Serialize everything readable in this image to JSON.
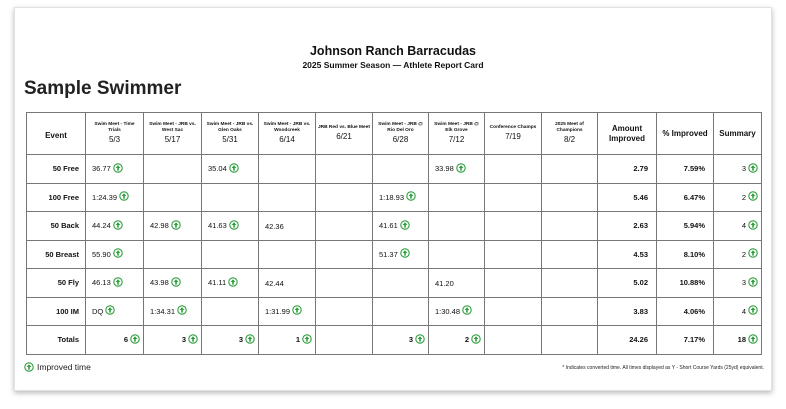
{
  "header": {
    "team_name": "Johnson Ranch Barracudas",
    "season": "2025 Summer Season — Athlete Report Card"
  },
  "athlete_name": "Sample Swimmer",
  "columns": {
    "event": "Event",
    "meets": [
      {
        "name": "Swim Meet - Time Trials",
        "date": "5/3"
      },
      {
        "name": "Swim Meet - JRB vs. West Sac",
        "date": "5/17"
      },
      {
        "name": "Swim Meet - JRB vs. Glen Oaks",
        "date": "5/31"
      },
      {
        "name": "Swim Meet - JRB vs. Woodcreek",
        "date": "6/14"
      },
      {
        "name": "JRB Red vs. Blue Meet",
        "date": "6/21"
      },
      {
        "name": "Swim Meet - JRB @ Rio Del Oro",
        "date": "6/28"
      },
      {
        "name": "Swim Meet - JRB @ Elk Grove",
        "date": "7/12"
      },
      {
        "name": "Conference Champs",
        "date": "7/19"
      },
      {
        "name": "2025 Meet of Champions",
        "date": "8/2"
      }
    ],
    "amount_improved": "Amount Improved",
    "pct_improved": "% Improved",
    "summary": "Summary"
  },
  "rows": [
    {
      "event": "50 Free",
      "times": [
        {
          "t": "36.77",
          "imp": true
        },
        {
          "t": "",
          "imp": false
        },
        {
          "t": "35.04",
          "imp": true
        },
        {
          "t": "",
          "imp": false
        },
        {
          "t": "",
          "imp": false
        },
        {
          "t": "",
          "imp": false
        },
        {
          "t": "33.98",
          "imp": true
        },
        {
          "t": "",
          "imp": false
        },
        {
          "t": "",
          "imp": false
        }
      ],
      "amount": "2.79",
      "pct": "7.59%",
      "summary": "3"
    },
    {
      "event": "100 Free",
      "times": [
        {
          "t": "1:24.39",
          "imp": true
        },
        {
          "t": "",
          "imp": false
        },
        {
          "t": "",
          "imp": false
        },
        {
          "t": "",
          "imp": false
        },
        {
          "t": "",
          "imp": false
        },
        {
          "t": "1:18.93",
          "imp": true
        },
        {
          "t": "",
          "imp": false
        },
        {
          "t": "",
          "imp": false
        },
        {
          "t": "",
          "imp": false
        }
      ],
      "amount": "5.46",
      "pct": "6.47%",
      "summary": "2"
    },
    {
      "event": "50 Back",
      "times": [
        {
          "t": "44.24",
          "imp": true
        },
        {
          "t": "42.98",
          "imp": true
        },
        {
          "t": "41.63",
          "imp": true
        },
        {
          "t": "42.36",
          "imp": false
        },
        {
          "t": "",
          "imp": false
        },
        {
          "t": "41.61",
          "imp": true
        },
        {
          "t": "",
          "imp": false
        },
        {
          "t": "",
          "imp": false
        },
        {
          "t": "",
          "imp": false
        }
      ],
      "amount": "2.63",
      "pct": "5.94%",
      "summary": "4"
    },
    {
      "event": "50 Breast",
      "times": [
        {
          "t": "55.90",
          "imp": true
        },
        {
          "t": "",
          "imp": false
        },
        {
          "t": "",
          "imp": false
        },
        {
          "t": "",
          "imp": false
        },
        {
          "t": "",
          "imp": false
        },
        {
          "t": "51.37",
          "imp": true
        },
        {
          "t": "",
          "imp": false
        },
        {
          "t": "",
          "imp": false
        },
        {
          "t": "",
          "imp": false
        }
      ],
      "amount": "4.53",
      "pct": "8.10%",
      "summary": "2"
    },
    {
      "event": "50 Fly",
      "times": [
        {
          "t": "46.13",
          "imp": true
        },
        {
          "t": "43.98",
          "imp": true
        },
        {
          "t": "41.11",
          "imp": true
        },
        {
          "t": "42.44",
          "imp": false
        },
        {
          "t": "",
          "imp": false
        },
        {
          "t": "",
          "imp": false
        },
        {
          "t": "41.20",
          "imp": false
        },
        {
          "t": "",
          "imp": false
        },
        {
          "t": "",
          "imp": false
        }
      ],
      "amount": "5.02",
      "pct": "10.88%",
      "summary": "3"
    },
    {
      "event": "100 IM",
      "times": [
        {
          "t": "DQ",
          "imp": true
        },
        {
          "t": "1:34.31",
          "imp": true
        },
        {
          "t": "",
          "imp": false
        },
        {
          "t": "1:31.99",
          "imp": true
        },
        {
          "t": "",
          "imp": false
        },
        {
          "t": "",
          "imp": false
        },
        {
          "t": "1:30.48",
          "imp": true
        },
        {
          "t": "",
          "imp": false
        },
        {
          "t": "",
          "imp": false
        }
      ],
      "amount": "3.83",
      "pct": "4.06%",
      "summary": "4"
    }
  ],
  "totals": {
    "label": "Totals",
    "counts": [
      "6",
      "3",
      "3",
      "1",
      "",
      "3",
      "2",
      "",
      ""
    ],
    "amount": "24.26",
    "pct": "7.17%",
    "summary": "18"
  },
  "legend": {
    "label": "Improved time",
    "icon": "improved-time-icon",
    "color": "#2e9e3e"
  },
  "footnote": "* Indicates converted time. All times displayed as Y - Short Course Yards (25yd) equivalent."
}
